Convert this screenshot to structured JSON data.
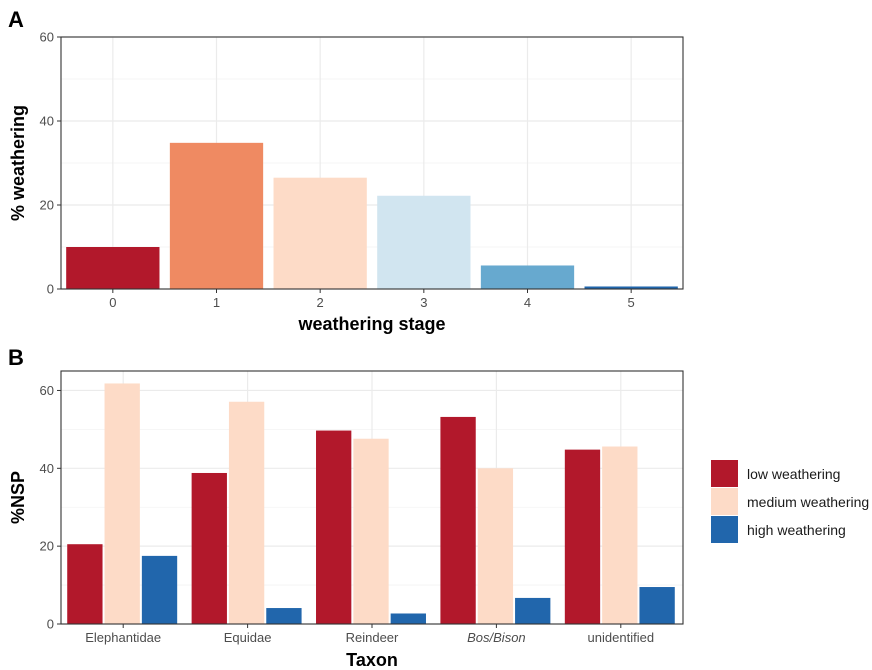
{
  "chart_data": [
    {
      "panel": "A",
      "type": "bar",
      "xlabel": "weathering stage",
      "ylabel": "% weathering",
      "ylim": [
        0,
        60
      ],
      "yticks": [
        0,
        20,
        40,
        60
      ],
      "categories": [
        "0",
        "1",
        "2",
        "3",
        "4",
        "5"
      ],
      "values": [
        10,
        34.8,
        26.5,
        22.2,
        5.6,
        0.6
      ],
      "colors": [
        "#b2182b",
        "#ef8a62",
        "#fddbc7",
        "#d1e5f0",
        "#67a9cf",
        "#2166ac"
      ],
      "grid": true,
      "legend": "none"
    },
    {
      "panel": "B",
      "type": "bar",
      "xlabel": "Taxon",
      "ylabel": "%NSP",
      "ylim": [
        0,
        65
      ],
      "yticks": [
        0,
        20,
        40,
        60
      ],
      "categories": [
        "Elephantidae",
        "Equidae",
        "Reindeer",
        "Bos/Bison",
        "unidentified"
      ],
      "italic_categories": [
        "Bos/Bison"
      ],
      "series": [
        {
          "name": "low weathering",
          "values": [
            20.5,
            38.8,
            49.7,
            53.2,
            44.8
          ],
          "color": "#b2182b"
        },
        {
          "name": "medium weathering",
          "values": [
            61.8,
            57.1,
            47.6,
            40.0,
            45.6
          ],
          "color": "#fddbc7"
        },
        {
          "name": "high weathering",
          "values": [
            17.5,
            4.1,
            2.7,
            6.7,
            9.5
          ],
          "color": "#2166ac"
        }
      ],
      "grid": true,
      "legend": "right"
    }
  ]
}
